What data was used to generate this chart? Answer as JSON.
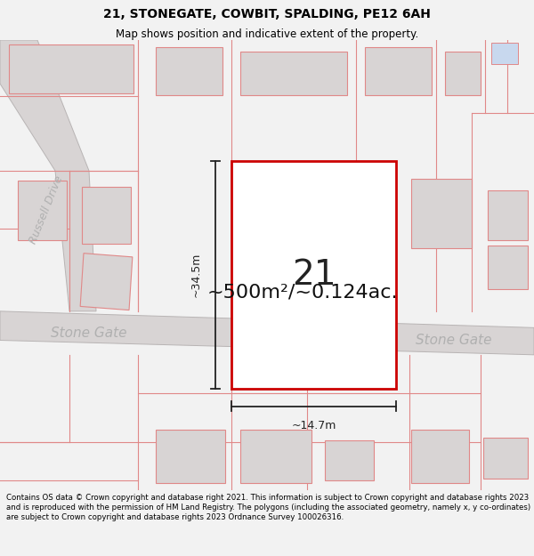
{
  "title": "21, STONEGATE, COWBIT, SPALDING, PE12 6AH",
  "subtitle": "Map shows position and indicative extent of the property.",
  "area_label": "~500m²/~0.124ac.",
  "plot_number": "21",
  "width_label": "~14.7m",
  "height_label": "~34.5m",
  "street_label_left": "Stone Gate",
  "street_label_right": "Stone Gate",
  "street_label_vertical": "Russell Drive",
  "footer": "Contains OS data © Crown copyright and database right 2021. This information is subject to Crown copyright and database rights 2023 and is reproduced with the permission of HM Land Registry. The polygons (including the associated geometry, namely x, y co-ordinates) are subject to Crown copyright and database rights 2023 Ordnance Survey 100026316.",
  "bg_color": "#f2f2f2",
  "map_bg": "#ffffff",
  "road_band_color": "#d8d4d4",
  "building_color": "#d8d4d4",
  "building_edge_color": "#e08888",
  "highlight_color": "#cc0000",
  "highlight_fill": "#ffffff",
  "road_line_color": "#e08888",
  "street_text_color": "#b0b0b0",
  "dim_line_color": "#222222",
  "title_fontsize": 10,
  "subtitle_fontsize": 8.5,
  "footer_fontsize": 6.2
}
